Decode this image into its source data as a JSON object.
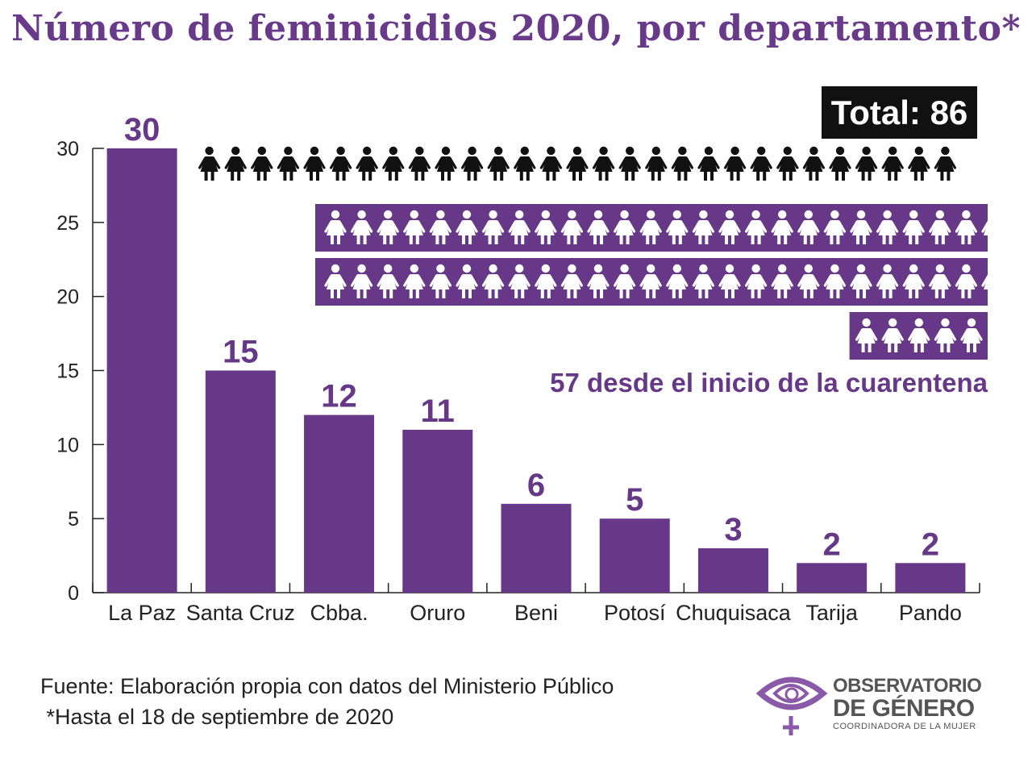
{
  "title": "Número de feminicidios 2020, por departamento*",
  "total_label": "Total: 86",
  "quarantine_note": "57 desde el inicio de la cuarentena",
  "total_count": 86,
  "quarantine_count": 57,
  "colors": {
    "bar": "#673888",
    "title": "#6a3a8a",
    "badge": "#111111",
    "pictogram_dark": "#111111",
    "pictogram_band": "#673888",
    "pictogram_white": "#ffffff",
    "axis": "#222222",
    "logo_gray": "#555555"
  },
  "chart_data": {
    "type": "bar",
    "categories": [
      "La Paz",
      "Santa Cruz",
      "Cbba.",
      "Oruro",
      "Beni",
      "Potosí",
      "Chuquisaca",
      "Tarija",
      "Pando"
    ],
    "values": [
      30,
      15,
      12,
      11,
      6,
      5,
      3,
      2,
      2
    ],
    "data_labels": [
      "30",
      "15",
      "12",
      "11",
      "6",
      "5",
      "3",
      "2",
      "2"
    ],
    "ylim": [
      0,
      30
    ],
    "yticks": [
      0,
      5,
      10,
      15,
      20,
      25,
      30
    ],
    "title": "Número de feminicidios 2020, por departamento*",
    "xlabel": "",
    "ylabel": "",
    "grid": false
  },
  "footer": {
    "source": "Fuente: Elaboración propia con datos del Ministerio Público",
    "note": " *Hasta el 18 de septiembre de 2020"
  },
  "logo": {
    "line1": "OBSERVATORIO",
    "line2": "DE GÉNERO",
    "line3": "COORDINADORA DE LA MUJER",
    "icon": "eye-venus-logo-icon"
  }
}
